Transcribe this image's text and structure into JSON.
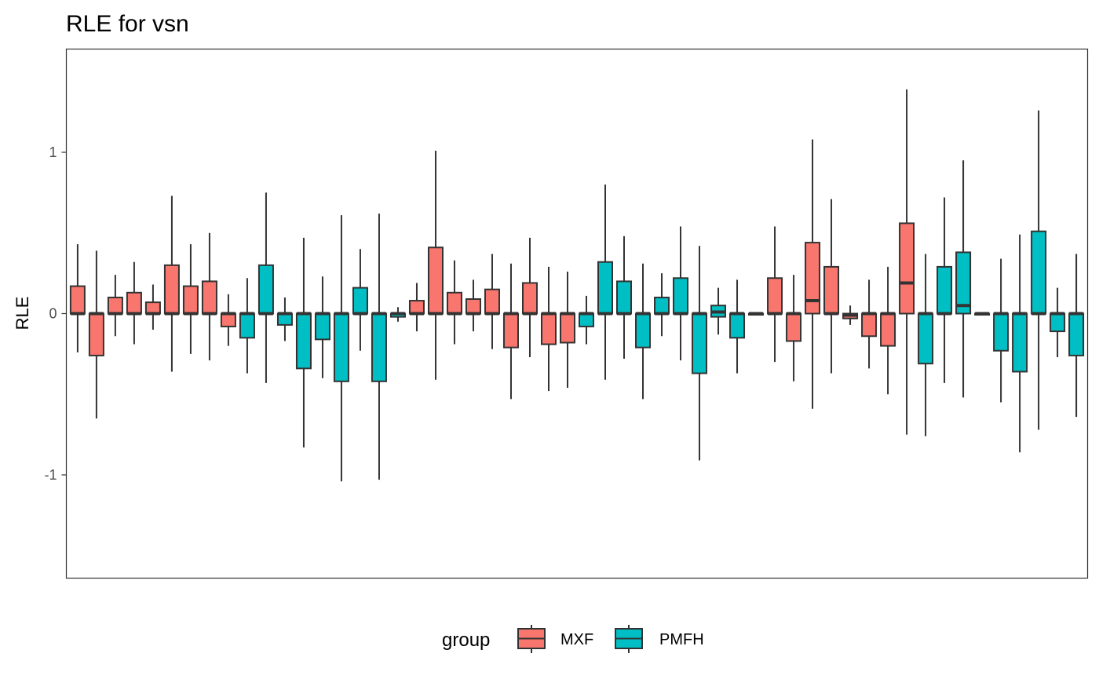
{
  "chart_data": {
    "type": "boxplot",
    "title": "RLE for vsn",
    "xlabel": "",
    "ylabel": "RLE",
    "ylim": [
      -1.64,
      1.64
    ],
    "y_ticks": [
      -1,
      0,
      1
    ],
    "y_tick_labels": [
      "-1",
      "0",
      "1"
    ],
    "grid": false,
    "legend": {
      "title": "group",
      "position": "bottom",
      "entries": [
        {
          "name": "MXF",
          "color": "#F8766D"
        },
        {
          "name": "PMFH",
          "color": "#00BFC4"
        }
      ]
    },
    "box_outline_color": "#333333",
    "samples": [
      {
        "group": "MXF",
        "lower_whisker": -0.24,
        "q1": 0.0,
        "median": 0.0,
        "q3": 0.17,
        "upper_whisker": 0.43
      },
      {
        "group": "MXF",
        "lower_whisker": -0.65,
        "q1": -0.26,
        "median": 0.0,
        "q3": 0.0,
        "upper_whisker": 0.39
      },
      {
        "group": "MXF",
        "lower_whisker": -0.14,
        "q1": 0.0,
        "median": 0.0,
        "q3": 0.1,
        "upper_whisker": 0.24
      },
      {
        "group": "MXF",
        "lower_whisker": -0.19,
        "q1": 0.0,
        "median": 0.0,
        "q3": 0.13,
        "upper_whisker": 0.32
      },
      {
        "group": "MXF",
        "lower_whisker": -0.1,
        "q1": 0.0,
        "median": 0.0,
        "q3": 0.07,
        "upper_whisker": 0.18
      },
      {
        "group": "MXF",
        "lower_whisker": -0.36,
        "q1": 0.0,
        "median": 0.0,
        "q3": 0.3,
        "upper_whisker": 0.73
      },
      {
        "group": "MXF",
        "lower_whisker": -0.25,
        "q1": 0.0,
        "median": 0.0,
        "q3": 0.17,
        "upper_whisker": 0.43
      },
      {
        "group": "MXF",
        "lower_whisker": -0.29,
        "q1": 0.0,
        "median": 0.0,
        "q3": 0.2,
        "upper_whisker": 0.5
      },
      {
        "group": "MXF",
        "lower_whisker": -0.2,
        "q1": -0.08,
        "median": 0.0,
        "q3": 0.0,
        "upper_whisker": 0.12
      },
      {
        "group": "PMFH",
        "lower_whisker": -0.37,
        "q1": -0.15,
        "median": 0.0,
        "q3": 0.0,
        "upper_whisker": 0.22
      },
      {
        "group": "PMFH",
        "lower_whisker": -0.43,
        "q1": 0.0,
        "median": 0.0,
        "q3": 0.3,
        "upper_whisker": 0.75
      },
      {
        "group": "PMFH",
        "lower_whisker": -0.17,
        "q1": -0.07,
        "median": 0.0,
        "q3": 0.0,
        "upper_whisker": 0.1
      },
      {
        "group": "PMFH",
        "lower_whisker": -0.83,
        "q1": -0.34,
        "median": 0.0,
        "q3": 0.0,
        "upper_whisker": 0.47
      },
      {
        "group": "PMFH",
        "lower_whisker": -0.4,
        "q1": -0.16,
        "median": 0.0,
        "q3": 0.0,
        "upper_whisker": 0.23
      },
      {
        "group": "PMFH",
        "lower_whisker": -1.04,
        "q1": -0.42,
        "median": 0.0,
        "q3": 0.0,
        "upper_whisker": 0.61
      },
      {
        "group": "PMFH",
        "lower_whisker": -0.23,
        "q1": 0.0,
        "median": 0.0,
        "q3": 0.16,
        "upper_whisker": 0.4
      },
      {
        "group": "PMFH",
        "lower_whisker": -1.03,
        "q1": -0.42,
        "median": 0.0,
        "q3": 0.0,
        "upper_whisker": 0.62
      },
      {
        "group": "PMFH",
        "lower_whisker": -0.05,
        "q1": -0.02,
        "median": 0.0,
        "q3": 0.0,
        "upper_whisker": 0.04
      },
      {
        "group": "MXF",
        "lower_whisker": -0.11,
        "q1": 0.0,
        "median": 0.0,
        "q3": 0.08,
        "upper_whisker": 0.19
      },
      {
        "group": "MXF",
        "lower_whisker": -0.41,
        "q1": 0.0,
        "median": 0.0,
        "q3": 0.41,
        "upper_whisker": 1.01
      },
      {
        "group": "MXF",
        "lower_whisker": -0.19,
        "q1": 0.0,
        "median": 0.0,
        "q3": 0.13,
        "upper_whisker": 0.33
      },
      {
        "group": "MXF",
        "lower_whisker": -0.11,
        "q1": 0.0,
        "median": 0.0,
        "q3": 0.09,
        "upper_whisker": 0.21
      },
      {
        "group": "MXF",
        "lower_whisker": -0.22,
        "q1": 0.0,
        "median": 0.0,
        "q3": 0.15,
        "upper_whisker": 0.37
      },
      {
        "group": "MXF",
        "lower_whisker": -0.53,
        "q1": -0.21,
        "median": 0.0,
        "q3": 0.0,
        "upper_whisker": 0.31
      },
      {
        "group": "MXF",
        "lower_whisker": -0.27,
        "q1": 0.0,
        "median": 0.0,
        "q3": 0.19,
        "upper_whisker": 0.47
      },
      {
        "group": "MXF",
        "lower_whisker": -0.48,
        "q1": -0.19,
        "median": 0.0,
        "q3": 0.0,
        "upper_whisker": 0.29
      },
      {
        "group": "MXF",
        "lower_whisker": -0.46,
        "q1": -0.18,
        "median": 0.0,
        "q3": 0.0,
        "upper_whisker": 0.26
      },
      {
        "group": "PMFH",
        "lower_whisker": -0.19,
        "q1": -0.08,
        "median": 0.0,
        "q3": 0.0,
        "upper_whisker": 0.11
      },
      {
        "group": "PMFH",
        "lower_whisker": -0.41,
        "q1": 0.0,
        "median": 0.0,
        "q3": 0.32,
        "upper_whisker": 0.8
      },
      {
        "group": "PMFH",
        "lower_whisker": -0.28,
        "q1": 0.0,
        "median": 0.0,
        "q3": 0.2,
        "upper_whisker": 0.48
      },
      {
        "group": "PMFH",
        "lower_whisker": -0.53,
        "q1": -0.21,
        "median": 0.0,
        "q3": 0.0,
        "upper_whisker": 0.31
      },
      {
        "group": "PMFH",
        "lower_whisker": -0.14,
        "q1": 0.0,
        "median": 0.0,
        "q3": 0.1,
        "upper_whisker": 0.25
      },
      {
        "group": "PMFH",
        "lower_whisker": -0.29,
        "q1": 0.0,
        "median": 0.0,
        "q3": 0.22,
        "upper_whisker": 0.54
      },
      {
        "group": "PMFH",
        "lower_whisker": -0.91,
        "q1": -0.37,
        "median": 0.0,
        "q3": 0.0,
        "upper_whisker": 0.42
      },
      {
        "group": "PMFH",
        "lower_whisker": -0.13,
        "q1": -0.02,
        "median": 0.01,
        "q3": 0.05,
        "upper_whisker": 0.16
      },
      {
        "group": "PMFH",
        "lower_whisker": -0.37,
        "q1": -0.15,
        "median": 0.0,
        "q3": 0.0,
        "upper_whisker": 0.21
      },
      {
        "group": "PMFH",
        "lower_whisker": 0.0,
        "q1": 0.0,
        "median": 0.0,
        "q3": 0.0,
        "upper_whisker": 0.0
      },
      {
        "group": "MXF",
        "lower_whisker": -0.3,
        "q1": 0.0,
        "median": 0.0,
        "q3": 0.22,
        "upper_whisker": 0.54
      },
      {
        "group": "MXF",
        "lower_whisker": -0.42,
        "q1": -0.17,
        "median": 0.0,
        "q3": 0.0,
        "upper_whisker": 0.24
      },
      {
        "group": "MXF",
        "lower_whisker": -0.59,
        "q1": 0.0,
        "median": 0.08,
        "q3": 0.44,
        "upper_whisker": 1.08
      },
      {
        "group": "MXF",
        "lower_whisker": -0.37,
        "q1": 0.0,
        "median": 0.0,
        "q3": 0.29,
        "upper_whisker": 0.71
      },
      {
        "group": "MXF",
        "lower_whisker": -0.07,
        "q1": -0.03,
        "median": -0.01,
        "q3": 0.0,
        "upper_whisker": 0.05
      },
      {
        "group": "MXF",
        "lower_whisker": -0.34,
        "q1": -0.14,
        "median": 0.0,
        "q3": 0.0,
        "upper_whisker": 0.21
      },
      {
        "group": "MXF",
        "lower_whisker": -0.5,
        "q1": -0.2,
        "median": 0.0,
        "q3": 0.0,
        "upper_whisker": 0.29
      },
      {
        "group": "MXF",
        "lower_whisker": -0.75,
        "q1": 0.0,
        "median": 0.19,
        "q3": 0.56,
        "upper_whisker": 1.39
      },
      {
        "group": "PMFH",
        "lower_whisker": -0.76,
        "q1": -0.31,
        "median": 0.0,
        "q3": 0.0,
        "upper_whisker": 0.37
      },
      {
        "group": "PMFH",
        "lower_whisker": -0.43,
        "q1": 0.0,
        "median": 0.0,
        "q3": 0.29,
        "upper_whisker": 0.72
      },
      {
        "group": "PMFH",
        "lower_whisker": -0.52,
        "q1": 0.0,
        "median": 0.05,
        "q3": 0.38,
        "upper_whisker": 0.95
      },
      {
        "group": "PMFH",
        "lower_whisker": 0.0,
        "q1": 0.0,
        "median": 0.0,
        "q3": 0.0,
        "upper_whisker": 0.0
      },
      {
        "group": "PMFH",
        "lower_whisker": -0.55,
        "q1": -0.23,
        "median": 0.0,
        "q3": 0.0,
        "upper_whisker": 0.34
      },
      {
        "group": "PMFH",
        "lower_whisker": -0.86,
        "q1": -0.36,
        "median": 0.0,
        "q3": 0.0,
        "upper_whisker": 0.49
      },
      {
        "group": "PMFH",
        "lower_whisker": -0.72,
        "q1": 0.0,
        "median": 0.0,
        "q3": 0.51,
        "upper_whisker": 1.26
      },
      {
        "group": "PMFH",
        "lower_whisker": -0.27,
        "q1": -0.11,
        "median": 0.0,
        "q3": 0.0,
        "upper_whisker": 0.16
      },
      {
        "group": "PMFH",
        "lower_whisker": -0.64,
        "q1": -0.26,
        "median": 0.0,
        "q3": 0.0,
        "upper_whisker": 0.37
      }
    ]
  }
}
